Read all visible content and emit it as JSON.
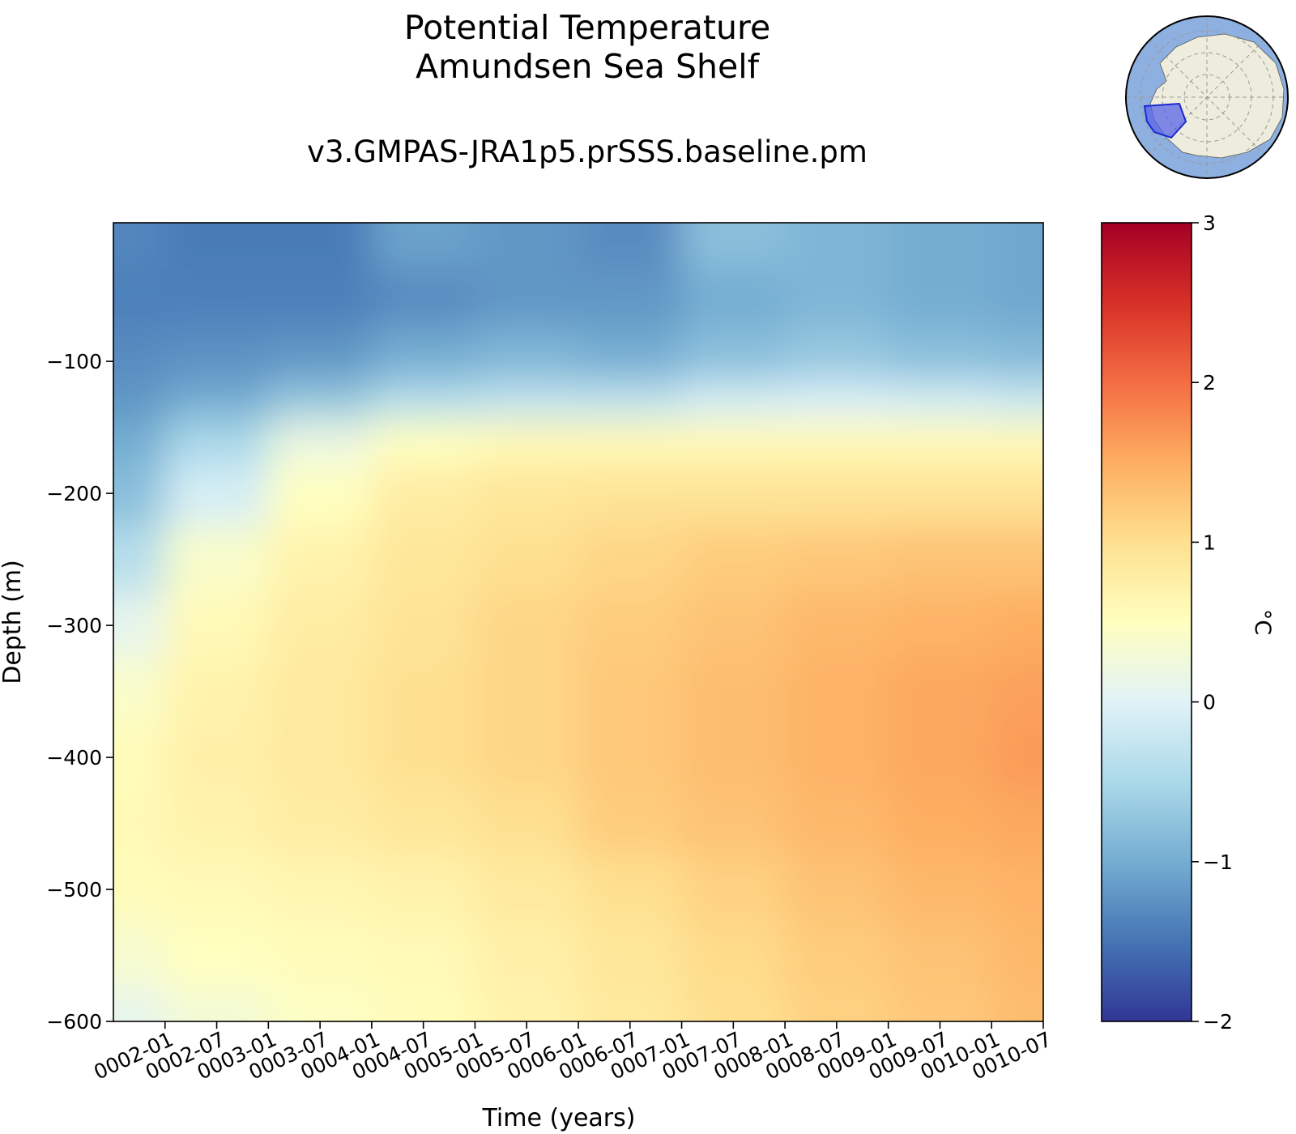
{
  "title_line1": "Potential Temperature",
  "title_line2": "Amundsen Sea Shelf",
  "subtitle": "v3.GMPAS-JRA1p5.prSSS.baseline.pm",
  "inset_map": {
    "icon": "antarctica-locator-map-icon",
    "ocean_color": "#8eb0e0",
    "land_color": "#eeecdc",
    "region_color": "#5a66e8"
  },
  "chart_data": {
    "type": "heatmap",
    "xlabel": "Time (years)",
    "ylabel": "Depth (m)",
    "colorbar_label": "°C",
    "colormap": "RdYlBu_r",
    "clim": [
      -2,
      3
    ],
    "colorbar_ticks": [
      "3",
      "2",
      "1",
      "0",
      "−1",
      "−2"
    ],
    "x_range": [
      "0001-07",
      "0010-07"
    ],
    "x_ticks": [
      "0002-01",
      "0002-07",
      "0003-01",
      "0003-07",
      "0004-01",
      "0004-07",
      "0005-01",
      "0005-07",
      "0006-01",
      "0006-07",
      "0007-01",
      "0007-07",
      "0008-01",
      "0008-07",
      "0009-01",
      "0009-07",
      "0010-01",
      "0010-07"
    ],
    "ylim": [
      -600,
      5
    ],
    "y_ticks": [
      "−100",
      "−200",
      "−300",
      "−400",
      "−500",
      "−600"
    ],
    "times": [
      "0001-07",
      "0002-07",
      "0003-07",
      "0004-07",
      "0005-07",
      "0006-07",
      "0007-07",
      "0008-07",
      "0009-07",
      "0010-07"
    ],
    "depths": [
      -10,
      -50,
      -100,
      -130,
      -160,
      -200,
      -250,
      -300,
      -350,
      -400,
      -450,
      -500,
      -550,
      -600
    ],
    "values": [
      [
        -1.35,
        -1.45,
        -1.45,
        -1.1,
        -1.2,
        -1.3,
        -0.8,
        -0.9,
        -1.0,
        -1.05
      ],
      [
        -1.4,
        -1.4,
        -1.4,
        -1.3,
        -1.2,
        -1.2,
        -1.0,
        -0.9,
        -1.0,
        -1.05
      ],
      [
        -1.3,
        -1.25,
        -1.2,
        -1.0,
        -0.9,
        -1.0,
        -0.8,
        -0.7,
        -0.8,
        -0.85
      ],
      [
        -1.2,
        -1.0,
        -0.7,
        -0.4,
        -0.3,
        -0.3,
        -0.1,
        -0.05,
        -0.1,
        -0.2
      ],
      [
        -1.0,
        -0.5,
        0.2,
        0.5,
        0.6,
        0.6,
        0.6,
        0.6,
        0.6,
        0.6
      ],
      [
        -0.8,
        -0.1,
        0.5,
        0.8,
        0.9,
        0.95,
        0.95,
        0.95,
        0.95,
        0.95
      ],
      [
        -0.4,
        0.4,
        0.7,
        0.9,
        1.0,
        1.1,
        1.2,
        1.25,
        1.3,
        1.3
      ],
      [
        0.1,
        0.6,
        0.8,
        0.95,
        1.1,
        1.2,
        1.3,
        1.4,
        1.45,
        1.5
      ],
      [
        0.4,
        0.7,
        0.85,
        1.0,
        1.1,
        1.25,
        1.35,
        1.45,
        1.55,
        1.6
      ],
      [
        0.55,
        0.75,
        0.85,
        1.0,
        1.1,
        1.25,
        1.35,
        1.45,
        1.55,
        1.65
      ],
      [
        0.6,
        0.7,
        0.8,
        0.9,
        1.0,
        1.2,
        1.3,
        1.4,
        1.5,
        1.55
      ],
      [
        0.55,
        0.6,
        0.65,
        0.7,
        0.85,
        1.0,
        1.15,
        1.3,
        1.4,
        1.45
      ],
      [
        0.35,
        0.5,
        0.55,
        0.6,
        0.75,
        0.9,
        1.05,
        1.2,
        1.3,
        1.4
      ],
      [
        0.1,
        0.3,
        0.45,
        0.55,
        0.7,
        0.85,
        1.0,
        1.15,
        1.25,
        1.35
      ]
    ]
  }
}
